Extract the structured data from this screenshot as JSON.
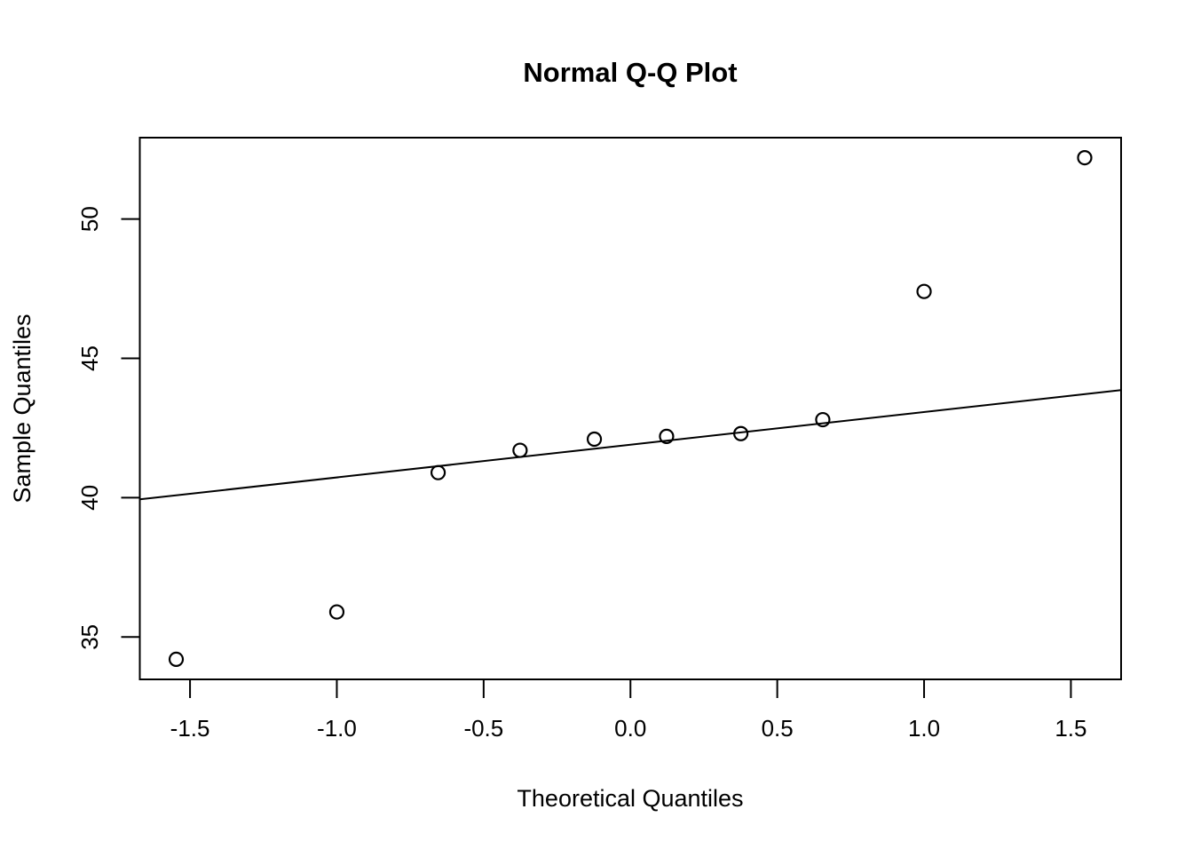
{
  "chart_data": {
    "type": "scatter",
    "title": "Normal Q-Q Plot",
    "xlabel": "Theoretical Quantiles",
    "ylabel": "Sample Quantiles",
    "xlim": [
      -1.671,
      1.671
    ],
    "ylim": [
      33.48,
      52.92
    ],
    "grid": false,
    "legend": null,
    "x_ticks": {
      "values": [
        -1.5,
        -1.0,
        -0.5,
        0.0,
        0.5,
        1.0,
        1.5
      ],
      "labels": [
        "-1.5",
        "-1.0",
        "-0.5",
        "0.0",
        "0.5",
        "1.0",
        "1.5"
      ]
    },
    "y_ticks": {
      "values": [
        35,
        40,
        45,
        50
      ],
      "labels": [
        "35",
        "40",
        "45",
        "50"
      ]
    },
    "points": [
      {
        "x": -1.547,
        "y": 34.2
      },
      {
        "x": -1.0,
        "y": 35.9
      },
      {
        "x": -0.655,
        "y": 40.9
      },
      {
        "x": -0.376,
        "y": 41.7
      },
      {
        "x": -0.123,
        "y": 42.1
      },
      {
        "x": 0.123,
        "y": 42.2
      },
      {
        "x": 0.376,
        "y": 42.3
      },
      {
        "x": 0.655,
        "y": 42.8
      },
      {
        "x": 1.0,
        "y": 47.4
      },
      {
        "x": 1.547,
        "y": 52.2
      }
    ],
    "point_style": {
      "shape": "open-circle",
      "color": "#000000"
    },
    "reference_line": {
      "x1": -1.671,
      "y1": 39.94,
      "x2": 1.671,
      "y2": 43.86,
      "color": "#000000"
    },
    "colors": {
      "foreground": "#000000",
      "background": "#ffffff"
    }
  }
}
